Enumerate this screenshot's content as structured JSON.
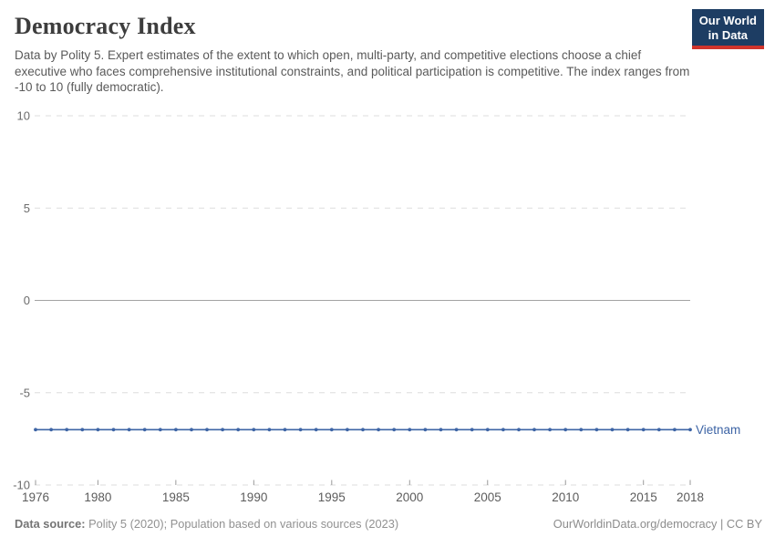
{
  "header": {
    "title": "Democracy Index",
    "subtitle": "Data by Polity 5. Expert estimates of the extent to which open, multi-party, and competitive elections choose a chief executive who faces comprehensive institutional constraints, and political participation is competitive. The index ranges from -10 to 10 (fully democratic).",
    "logo": {
      "line1": "Our World",
      "line2": "in Data"
    }
  },
  "footer": {
    "datasource_label": "Data source:",
    "datasource_text": " Polity 5 (2020); Population based on various sources (2023)",
    "link_text": "OurWorldinData.org/democracy | CC BY"
  },
  "colors": {
    "series": "#3d64a5",
    "grid": "#dedede",
    "zero_line": "#a3a3a3",
    "axis_tick": "#9a9a9a",
    "y_label": "#6b6b6b",
    "x_label": "#5c5c5c",
    "logo_bg": "#1d3d63",
    "logo_stripe": "#d0342c"
  },
  "chart_data": {
    "type": "line",
    "title": "Democracy Index",
    "xlabel": "",
    "ylabel": "",
    "ylim": [
      -10,
      10
    ],
    "yticks": [
      10,
      5,
      0,
      -5,
      -10
    ],
    "xticks": [
      1976,
      1980,
      1985,
      1990,
      1995,
      2000,
      2005,
      2010,
      2015,
      2018
    ],
    "grid": "horizontal-dashed",
    "legend_position": "line-end-label",
    "x": [
      1976,
      1977,
      1978,
      1979,
      1980,
      1981,
      1982,
      1983,
      1984,
      1985,
      1986,
      1987,
      1988,
      1989,
      1990,
      1991,
      1992,
      1993,
      1994,
      1995,
      1996,
      1997,
      1998,
      1999,
      2000,
      2001,
      2002,
      2003,
      2004,
      2005,
      2006,
      2007,
      2008,
      2009,
      2010,
      2011,
      2012,
      2013,
      2014,
      2015,
      2016,
      2017,
      2018
    ],
    "series": [
      {
        "name": "Vietnam",
        "color": "#3d64a5",
        "values": [
          -7,
          -7,
          -7,
          -7,
          -7,
          -7,
          -7,
          -7,
          -7,
          -7,
          -7,
          -7,
          -7,
          -7,
          -7,
          -7,
          -7,
          -7,
          -7,
          -7,
          -7,
          -7,
          -7,
          -7,
          -7,
          -7,
          -7,
          -7,
          -7,
          -7,
          -7,
          -7,
          -7,
          -7,
          -7,
          -7,
          -7,
          -7,
          -7,
          -7,
          -7,
          -7,
          -7
        ]
      }
    ]
  }
}
